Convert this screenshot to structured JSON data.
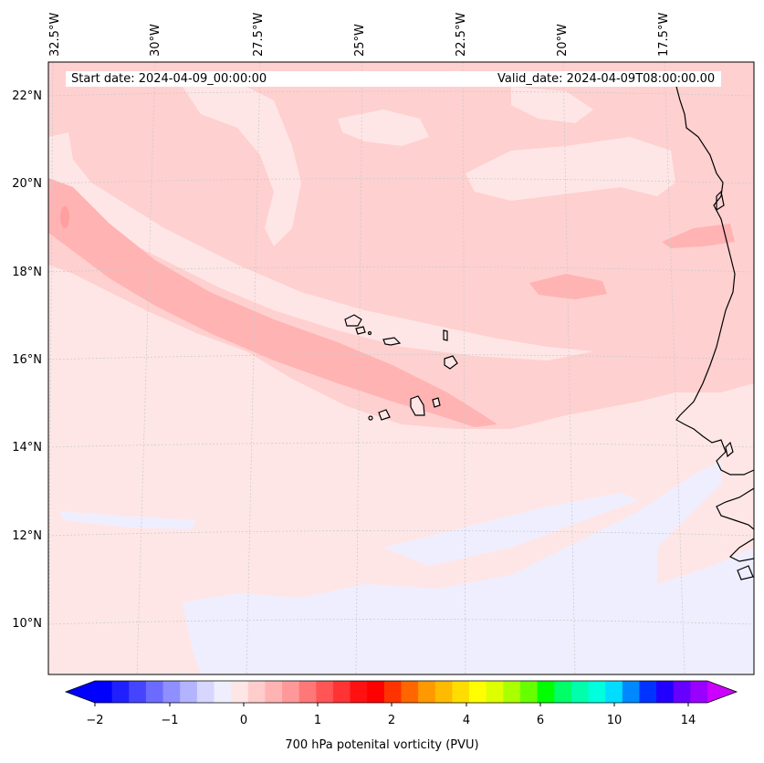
{
  "map": {
    "start_date": "Start date: 2024-04-09_00:00:00",
    "valid_date": "Valid_date: 2024-04-09T08:00:00.00",
    "longitude_labels": [
      "32.5°W",
      "30°W",
      "27.5°W",
      "25°W",
      "22.5°W",
      "20°W",
      "17.5°W"
    ],
    "latitude_labels": [
      "22°N",
      "20°N",
      "18°N",
      "16°N",
      "14°N",
      "12°N",
      "10°N"
    ],
    "region": "Cape Verde islands and West African coast",
    "colors": {
      "background_shade": "#ffe6e6",
      "light_band": "#ffd0d0",
      "strong_band": "#ffb3b3",
      "negative_shade": "#eeeeff",
      "coastline": "#000000",
      "gridline": "#cccccc"
    }
  },
  "colorbar": {
    "label": "700 hPa potenital vorticity (PVU)",
    "tick_labels": [
      "−2",
      "−1",
      "0",
      "1",
      "2",
      "4",
      "6",
      "10",
      "14"
    ],
    "colors": [
      "#0000ff",
      "#2020ff",
      "#4545ff",
      "#6b6bff",
      "#8f8fff",
      "#b3b3ff",
      "#d6d6ff",
      "#eeeeff",
      "#ffe6e6",
      "#ffcccc",
      "#ffb3b3",
      "#ff9999",
      "#ff7777",
      "#ff5555",
      "#ff3333",
      "#ff1111",
      "#ff0000",
      "#ff3300",
      "#ff6600",
      "#ff9900",
      "#ffbb00",
      "#ffdd00",
      "#ffff00",
      "#ddff00",
      "#aaff00",
      "#66ff00",
      "#00ff00",
      "#00ff66",
      "#00ffaa",
      "#00ffdd",
      "#00ddff",
      "#0088ff",
      "#0033ff",
      "#2200ff",
      "#6600ff",
      "#9900ff"
    ],
    "under_color": "#0000ff",
    "over_color": "#cc00ff"
  }
}
